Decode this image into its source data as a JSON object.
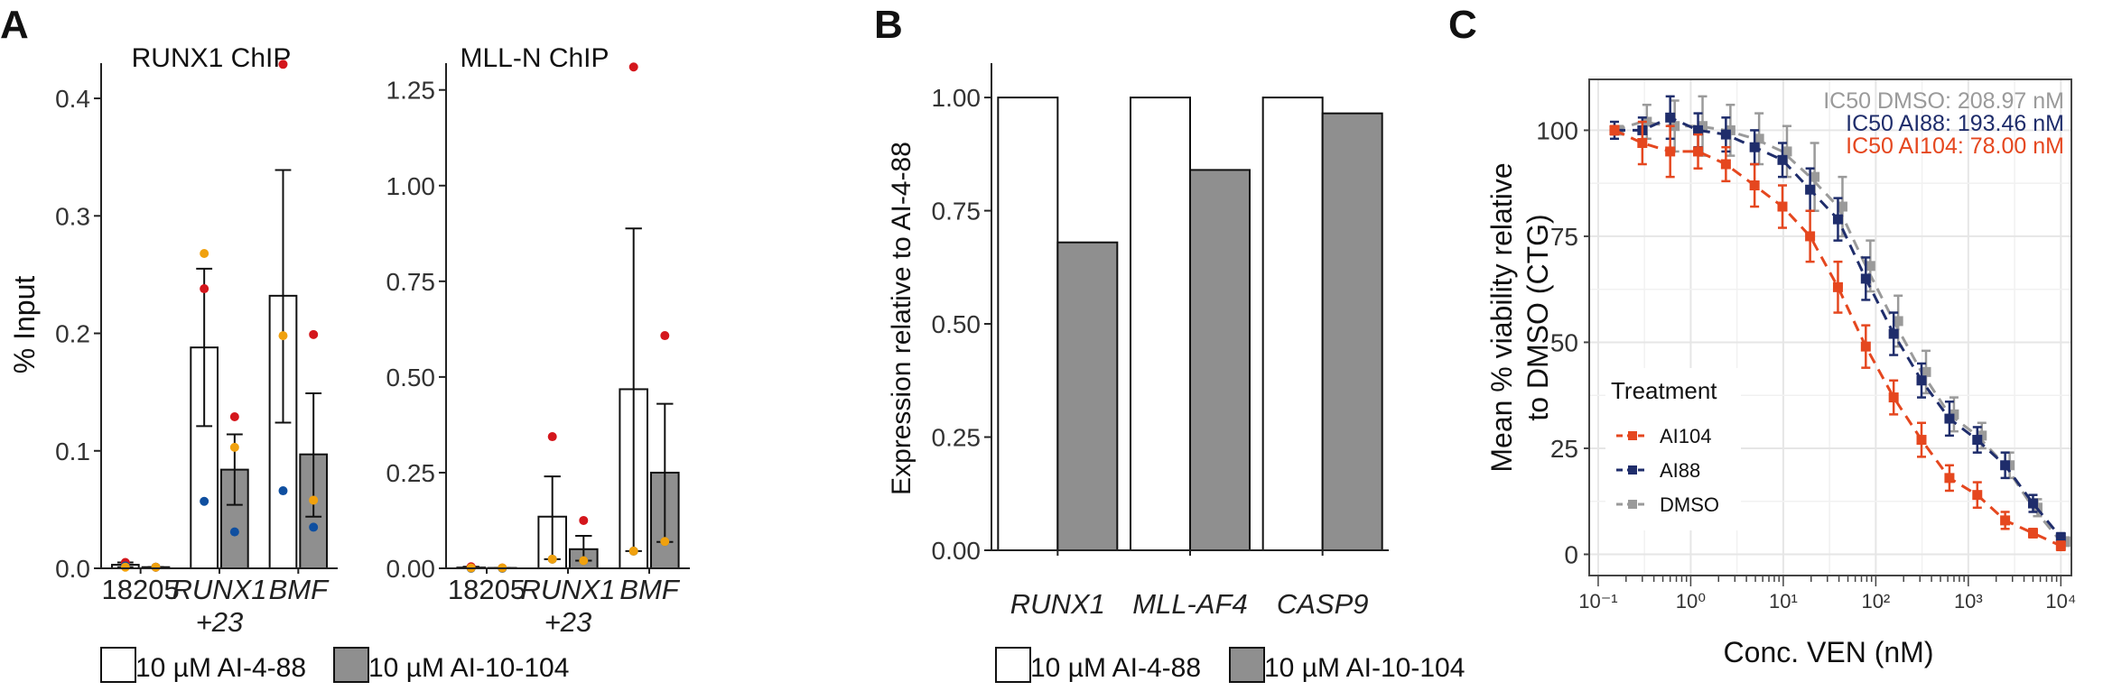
{
  "panels": {
    "A": {
      "letter": "A",
      "ylabel": "% Input",
      "legend": [
        "10 µM AI-4-88",
        "10 µM AI-10-104"
      ]
    },
    "B": {
      "letter": "B",
      "legend": [
        "10 µM AI-4-88",
        "10 µM AI-10-104"
      ]
    },
    "C": {
      "letter": "C",
      "ic50": [
        {
          "text": "IC50 DMSO: 208.97 nM",
          "color": "#9a9a9a"
        },
        {
          "text": "IC50 AI88: 193.46 nM",
          "color": "#1f2d6b"
        },
        {
          "text": "IC50 AI104: 78.00 nM",
          "color": "#e5471f"
        }
      ]
    }
  },
  "colors": {
    "white_bar": "#ffffff",
    "grey_bar": "#8f8f8f",
    "red_dot": "#d4161c",
    "orange_dot": "#f0a10e",
    "blue_dot": "#0f4fa0",
    "AI104": "#e5471f",
    "AI88": "#1f2d6b",
    "DMSO": "#9a9a9a",
    "grid": "#e6e6e6"
  },
  "chart_data": [
    {
      "type": "bar",
      "title": "RUNX1 ChIP",
      "ylabel": "% Input",
      "categories": [
        "18205",
        "RUNX1\n+23",
        "BMF"
      ],
      "ylim": [
        0,
        0.43
      ],
      "yticks": [
        0.0,
        0.1,
        0.2,
        0.3,
        0.4
      ],
      "tick_labels": [
        "0.0",
        "0.1",
        "0.2",
        "0.3",
        "0.4"
      ],
      "series": [
        {
          "name": "10 µM AI-4-88",
          "values": [
            0.003,
            0.188,
            0.232
          ],
          "err_low": [
            0.001,
            0.121,
            0.124
          ],
          "err_high": [
            0.005,
            0.255,
            0.339
          ],
          "points": [
            [
              0.005,
              0.002,
              0.001
            ],
            [
              0.238,
              0.057,
              0.268
            ],
            [
              0.429,
              0.066,
              0.198
            ]
          ]
        },
        {
          "name": "10 µM AI-10-104",
          "values": [
            0.001,
            0.084,
            0.097
          ],
          "err_low": [
            0.001,
            0.054,
            0.044
          ],
          "err_high": [
            0.001,
            0.114,
            0.149
          ],
          "points": [
            [
              0.001,
              0.001,
              0.001
            ],
            [
              0.129,
              0.031,
              0.103
            ],
            [
              0.199,
              0.035,
              0.058
            ]
          ]
        }
      ]
    },
    {
      "type": "bar",
      "title": "MLL-N ChIP",
      "categories": [
        "18205",
        "RUNX1\n+23",
        "BMF"
      ],
      "ylim": [
        0,
        1.32
      ],
      "yticks": [
        0.0,
        0.25,
        0.5,
        0.75,
        1.0,
        1.25
      ],
      "tick_labels": [
        "0.00",
        "0.25",
        "0.50",
        "0.75",
        "1.00",
        "1.25"
      ],
      "series": [
        {
          "name": "10 µM AI-4-88",
          "values": [
            0.002,
            0.135,
            0.468
          ],
          "err_low": [
            0.0,
            0.024,
            0.045
          ],
          "err_high": [
            0.004,
            0.24,
            0.888
          ],
          "points": [
            [
              0.004,
              0.0,
              0.001
            ],
            [
              0.344,
              0.024,
              0.024
            ],
            [
              1.31,
              0.045,
              0.045
            ]
          ]
        },
        {
          "name": "10 µM AI-10-104",
          "values": [
            0.001,
            0.05,
            0.25
          ],
          "err_low": [
            0.0,
            0.02,
            0.069
          ],
          "err_high": [
            0.001,
            0.085,
            0.43
          ],
          "points": [
            [
              0.001,
              0.0,
              0.001
            ],
            [
              0.125,
              0.02,
              0.02
            ],
            [
              0.608,
              0.07,
              0.07
            ]
          ]
        }
      ]
    },
    {
      "type": "bar",
      "ylabel": "Expression relative to AI-4-88",
      "categories": [
        "RUNX1",
        "MLL-AF4",
        "CASP9"
      ],
      "ylim": [
        0,
        1.0
      ],
      "yticks": [
        0.0,
        0.25,
        0.5,
        0.75,
        1.0
      ],
      "tick_labels": [
        "0.00",
        "0.25",
        "0.50",
        "0.75",
        "1.00"
      ],
      "series": [
        {
          "name": "10 µM AI-4-88",
          "values": [
            1.0,
            1.0,
            1.0
          ]
        },
        {
          "name": "10 µM AI-10-104",
          "values": [
            0.68,
            0.84,
            0.965
          ]
        }
      ]
    },
    {
      "type": "line",
      "xlabel": "Conc. VEN (nM)",
      "ylabel": "Mean % viability relative\nto DMSO (CTG)",
      "xscale": "log",
      "xlim": [
        0.1,
        10000
      ],
      "ylim": [
        0,
        105
      ],
      "yticks": [
        0,
        25,
        50,
        75,
        100
      ],
      "xtick_labels": [
        "10⁻¹",
        "10⁰",
        "10¹",
        "10²",
        "10³",
        "10⁴"
      ],
      "legend_title": "Treatment",
      "series": [
        {
          "name": "AI104",
          "x": [
            0.15,
            0.3,
            0.6,
            1.2,
            2.4,
            4.9,
            9.8,
            19.5,
            39,
            78,
            156,
            312,
            625,
            1250,
            2500,
            5000,
            10000
          ],
          "y": [
            100,
            97,
            95,
            95,
            92,
            87,
            82,
            75,
            63,
            49,
            37,
            27,
            18,
            14,
            8,
            5,
            2
          ],
          "err": [
            1,
            5,
            6,
            4,
            4,
            5,
            5,
            6,
            6,
            5,
            4,
            4,
            3,
            3,
            2,
            1,
            1
          ]
        },
        {
          "name": "AI88",
          "x": [
            0.15,
            0.3,
            0.6,
            1.2,
            2.4,
            4.9,
            9.8,
            19.5,
            39,
            78,
            156,
            312,
            625,
            1250,
            2500,
            5000,
            10000
          ],
          "y": [
            100,
            100,
            103,
            100,
            99,
            96,
            93,
            86,
            79,
            65,
            52,
            41,
            32,
            27,
            21,
            12,
            4
          ],
          "err": [
            2,
            3,
            5,
            4,
            4,
            4,
            4,
            5,
            5,
            5,
            5,
            4,
            4,
            3,
            3,
            2,
            1
          ]
        },
        {
          "name": "DMSO",
          "x": [
            0.15,
            0.3,
            0.6,
            1.2,
            2.4,
            4.9,
            9.8,
            19.5,
            39,
            78,
            156,
            312,
            625,
            1250,
            2500,
            5000,
            10000
          ],
          "y": [
            100,
            102,
            101,
            101,
            100,
            98,
            95,
            89,
            82,
            68,
            55,
            43,
            33,
            28,
            21,
            11,
            3
          ],
          "err": [
            1,
            4,
            6,
            7,
            6,
            6,
            6,
            8,
            7,
            6,
            6,
            5,
            4,
            3,
            3,
            2,
            1
          ]
        }
      ]
    }
  ]
}
